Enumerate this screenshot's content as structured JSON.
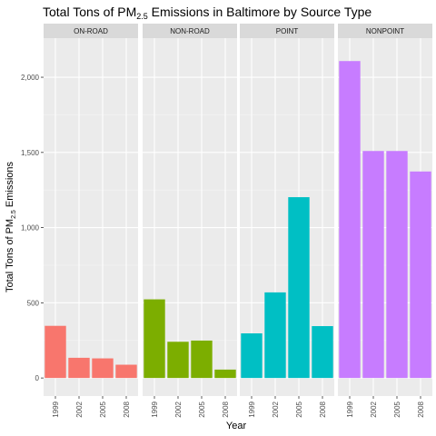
{
  "chart_data": {
    "type": "bar",
    "title_prefix": "Total Tons of PM",
    "title_sub": "2.5",
    "title_suffix": " Emissions in Baltimore by Source Type",
    "xlabel": "Year",
    "ylabel_prefix": "Total Tons of PM",
    "ylabel_sub": "2.5",
    "ylabel_suffix": " Emissions",
    "categories": [
      "1999",
      "2002",
      "2005",
      "2008"
    ],
    "ylim": [
      -120,
      2260
    ],
    "yticks": [
      0,
      500,
      1000,
      1500,
      2000
    ],
    "ytick_labels": [
      "0",
      "500",
      "1,000",
      "1,500",
      "2,000"
    ],
    "grid": true,
    "legend": "none",
    "panels": [
      {
        "name": "ON-ROAD",
        "color": "#F8766D",
        "values": [
          346.82,
          134.31,
          130.43,
          88.28
        ]
      },
      {
        "name": "NON-ROAD",
        "color": "#7CAE00",
        "values": [
          522.94,
          240.85,
          248.93,
          55.82
        ]
      },
      {
        "name": "POINT",
        "color": "#00BFC4",
        "values": [
          296.8,
          569.26,
          1202.49,
          344.98
        ]
      },
      {
        "name": "NONPOINT",
        "color": "#C77CFF",
        "values": [
          2107.63,
          1509.5,
          1509.5,
          1373.21
        ]
      }
    ]
  }
}
